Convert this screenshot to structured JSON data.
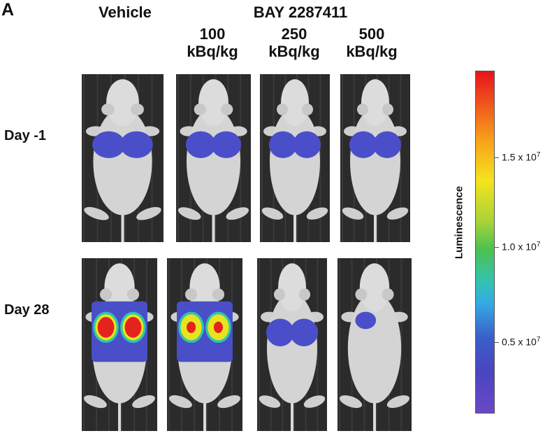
{
  "panel_letter": "A",
  "header": {
    "vehicle": "Vehicle",
    "compound": "BAY 2287411",
    "doses": [
      {
        "value": "100",
        "unit": "kBq/kg"
      },
      {
        "value": "250",
        "unit": "kBq/kg"
      },
      {
        "value": "500",
        "unit": "kBq/kg"
      }
    ]
  },
  "rows": [
    {
      "label": "Day -1"
    },
    {
      "label": "Day 28"
    }
  ],
  "colorbar": {
    "title": "Luminescence",
    "ticks": [
      {
        "mantissa": "1.5",
        "exponent": "7"
      },
      {
        "mantissa": "1.0",
        "exponent": "7"
      },
      {
        "mantissa": "0.5",
        "exponent": "7"
      }
    ],
    "colors": [
      "#e5141a",
      "#f7a01b",
      "#f4e41c",
      "#4cc14e",
      "#35a9e5",
      "#3a5fc7",
      "#6a48c6"
    ]
  },
  "signal_colors": {
    "low": "#4a4fc9",
    "mid": "#2ec7a8",
    "yellow": "#e7e41f",
    "high": "#e5231c"
  }
}
